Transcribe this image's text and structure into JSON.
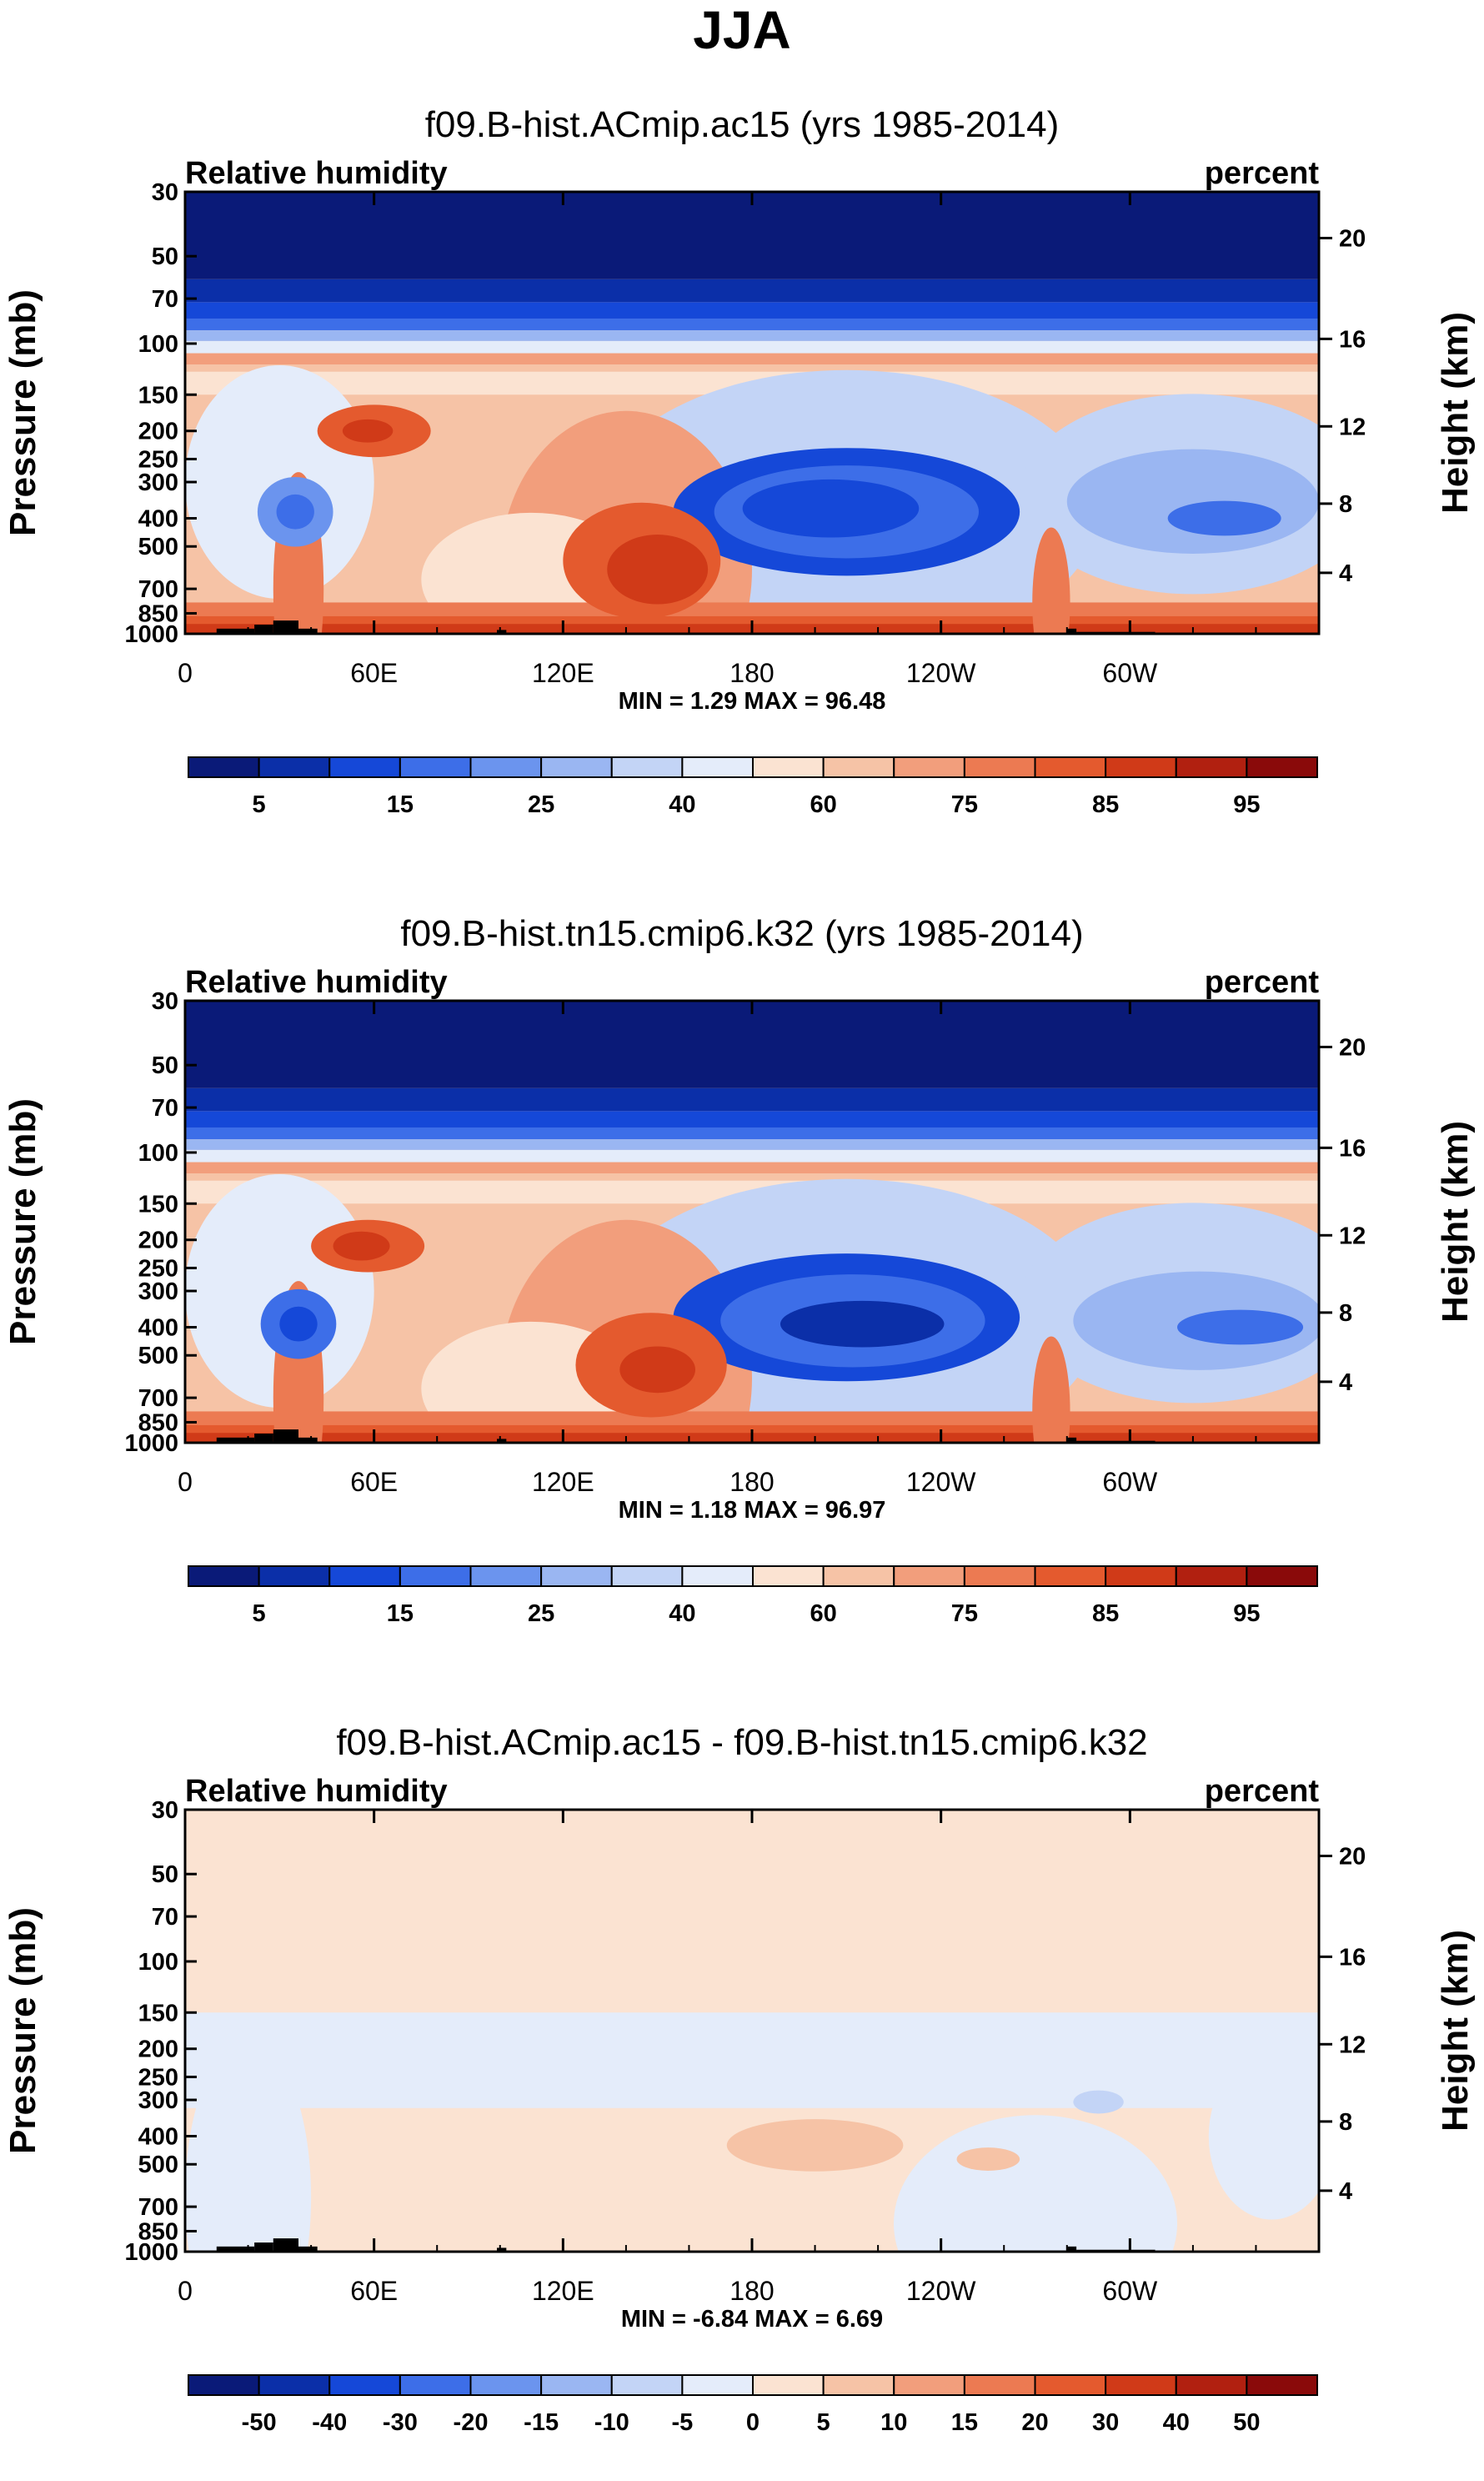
{
  "figure": {
    "season": "JJA",
    "left_axis_label": "Pressure (mb)",
    "right_axis_label": "Height (km)",
    "land_color": "#000000"
  },
  "chart_data": [
    {
      "type": "heatmap",
      "title": "f09.B-hist.ACmip.ac15 (yrs 1985-2014)",
      "variable": "Relative humidity",
      "units": "percent",
      "x_ticks": [
        "0",
        "60E",
        "120E",
        "180",
        "120W",
        "60W"
      ],
      "x_tick_lon": [
        0,
        60,
        120,
        180,
        240,
        300
      ],
      "xlim": [
        0,
        360
      ],
      "p_ticks": [
        "30",
        "50",
        "70",
        "100",
        "150",
        "200",
        "250",
        "300",
        "400",
        "500",
        "700",
        "850",
        "1000"
      ],
      "p_tick_values": [
        30,
        50,
        70,
        100,
        150,
        200,
        250,
        300,
        400,
        500,
        700,
        850,
        1000
      ],
      "ylim_mb": [
        1000,
        30
      ],
      "z_ticks": [
        "20",
        "16",
        "12",
        "8",
        "4"
      ],
      "z_tick_values": [
        20,
        16,
        12,
        8,
        4
      ],
      "stats": "MIN =   1.29   MAX =  96.48",
      "levels_labels": [
        "5",
        "15",
        "25",
        "40",
        "60",
        "75",
        "85",
        "95"
      ],
      "colors": [
        "#0a1a78",
        "#0b2fa8",
        "#1548d8",
        "#3d6ee8",
        "#6b94ee",
        "#9ab6f2",
        "#c3d4f6",
        "#e4ecfa",
        "#fbe3d2",
        "#f6c3a6",
        "#f29e7c",
        "#ec7a52",
        "#e45a2e",
        "#d03a18",
        "#b12010",
        "#8a0a0a"
      ],
      "blobs": [
        {
          "lon": 210,
          "p": 380,
          "rx": 55,
          "rdec": 0.22,
          "c": 2
        },
        {
          "lon": 210,
          "p": 380,
          "rx": 42,
          "rdec": 0.16,
          "c": 3
        },
        {
          "lon": 205,
          "p": 370,
          "rx": 28,
          "rdec": 0.1,
          "c": 2
        },
        {
          "lon": 320,
          "p": 350,
          "rx": 40,
          "rdec": 0.18,
          "c": 5
        },
        {
          "lon": 330,
          "p": 400,
          "rx": 18,
          "rdec": 0.06,
          "c": 3
        },
        {
          "lon": 35,
          "p": 380,
          "rx": 12,
          "rdec": 0.12,
          "c": 4
        },
        {
          "lon": 35,
          "p": 380,
          "rx": 6,
          "rdec": 0.06,
          "c": 3
        },
        {
          "lon": 60,
          "p": 200,
          "rx": 18,
          "rdec": 0.09,
          "c": 12
        },
        {
          "lon": 58,
          "p": 200,
          "rx": 8,
          "rdec": 0.04,
          "c": 13
        },
        {
          "lon": 145,
          "p": 560,
          "rx": 25,
          "rdec": 0.2,
          "c": 12
        },
        {
          "lon": 150,
          "p": 600,
          "rx": 16,
          "rdec": 0.12,
          "c": 13
        }
      ],
      "land_blocks": [
        {
          "lon0": 10,
          "lon1": 22,
          "p0": 960
        },
        {
          "lon0": 22,
          "lon1": 28,
          "p0": 930
        },
        {
          "lon0": 28,
          "lon1": 36,
          "p0": 900
        },
        {
          "lon0": 36,
          "lon1": 42,
          "p0": 960
        },
        {
          "lon0": 99,
          "lon1": 102,
          "p0": 970
        },
        {
          "lon0": 280,
          "lon1": 283,
          "p0": 960
        },
        {
          "lon0": 283,
          "lon1": 308,
          "p0": 985
        }
      ]
    },
    {
      "type": "heatmap",
      "title": "f09.B-hist.tn15.cmip6.k32 (yrs 1985-2014)",
      "variable": "Relative humidity",
      "units": "percent",
      "x_ticks": [
        "0",
        "60E",
        "120E",
        "180",
        "120W",
        "60W"
      ],
      "x_tick_lon": [
        0,
        60,
        120,
        180,
        240,
        300
      ],
      "xlim": [
        0,
        360
      ],
      "p_ticks": [
        "30",
        "50",
        "70",
        "100",
        "150",
        "200",
        "250",
        "300",
        "400",
        "500",
        "700",
        "850",
        "1000"
      ],
      "p_tick_values": [
        30,
        50,
        70,
        100,
        150,
        200,
        250,
        300,
        400,
        500,
        700,
        850,
        1000
      ],
      "ylim_mb": [
        1000,
        30
      ],
      "z_ticks": [
        "20",
        "16",
        "12",
        "8",
        "4"
      ],
      "z_tick_values": [
        20,
        16,
        12,
        8,
        4
      ],
      "stats": "MIN =   1.18   MAX =  96.97",
      "levels_labels": [
        "5",
        "15",
        "25",
        "40",
        "60",
        "75",
        "85",
        "95"
      ],
      "colors": [
        "#0a1a78",
        "#0b2fa8",
        "#1548d8",
        "#3d6ee8",
        "#6b94ee",
        "#9ab6f2",
        "#c3d4f6",
        "#e4ecfa",
        "#fbe3d2",
        "#f6c3a6",
        "#f29e7c",
        "#ec7a52",
        "#e45a2e",
        "#d03a18",
        "#b12010",
        "#8a0a0a"
      ],
      "blobs": [
        {
          "lon": 210,
          "p": 370,
          "rx": 55,
          "rdec": 0.22,
          "c": 2
        },
        {
          "lon": 212,
          "p": 380,
          "rx": 42,
          "rdec": 0.16,
          "c": 3
        },
        {
          "lon": 215,
          "p": 390,
          "rx": 26,
          "rdec": 0.08,
          "c": 1
        },
        {
          "lon": 322,
          "p": 380,
          "rx": 40,
          "rdec": 0.17,
          "c": 5
        },
        {
          "lon": 335,
          "p": 400,
          "rx": 20,
          "rdec": 0.06,
          "c": 3
        },
        {
          "lon": 36,
          "p": 390,
          "rx": 12,
          "rdec": 0.12,
          "c": 3
        },
        {
          "lon": 36,
          "p": 390,
          "rx": 6,
          "rdec": 0.06,
          "c": 2
        },
        {
          "lon": 58,
          "p": 210,
          "rx": 18,
          "rdec": 0.09,
          "c": 12
        },
        {
          "lon": 56,
          "p": 210,
          "rx": 9,
          "rdec": 0.05,
          "c": 13
        },
        {
          "lon": 148,
          "p": 540,
          "rx": 24,
          "rdec": 0.18,
          "c": 12
        },
        {
          "lon": 150,
          "p": 560,
          "rx": 12,
          "rdec": 0.08,
          "c": 13
        }
      ],
      "land_blocks": [
        {
          "lon0": 10,
          "lon1": 22,
          "p0": 960
        },
        {
          "lon0": 22,
          "lon1": 28,
          "p0": 930
        },
        {
          "lon0": 28,
          "lon1": 36,
          "p0": 900
        },
        {
          "lon0": 36,
          "lon1": 42,
          "p0": 960
        },
        {
          "lon0": 99,
          "lon1": 102,
          "p0": 970
        },
        {
          "lon0": 280,
          "lon1": 283,
          "p0": 960
        },
        {
          "lon0": 283,
          "lon1": 308,
          "p0": 985
        }
      ]
    },
    {
      "type": "heatmap",
      "title": "f09.B-hist.ACmip.ac15 - f09.B-hist.tn15.cmip6.k32",
      "variable": "Relative humidity",
      "units": "percent",
      "x_ticks": [
        "0",
        "60E",
        "120E",
        "180",
        "120W",
        "60W"
      ],
      "x_tick_lon": [
        0,
        60,
        120,
        180,
        240,
        300
      ],
      "xlim": [
        0,
        360
      ],
      "p_ticks": [
        "30",
        "50",
        "70",
        "100",
        "150",
        "200",
        "250",
        "300",
        "400",
        "500",
        "700",
        "850",
        "1000"
      ],
      "p_tick_values": [
        30,
        50,
        70,
        100,
        150,
        200,
        250,
        300,
        400,
        500,
        700,
        850,
        1000
      ],
      "ylim_mb": [
        1000,
        30
      ],
      "z_ticks": [
        "20",
        "16",
        "12",
        "8",
        "4"
      ],
      "z_tick_values": [
        20,
        16,
        12,
        8,
        4
      ],
      "stats": "MIN =  -6.84   MAX =   6.69",
      "levels_labels": [
        "-50",
        "-40",
        "-30",
        "-20",
        "-15",
        "-10",
        "-5",
        "0",
        "5",
        "10",
        "15",
        "20",
        "30",
        "40",
        "50"
      ],
      "colors": [
        "#0a1a78",
        "#0b2fa8",
        "#1548d8",
        "#3d6ee8",
        "#6b94ee",
        "#9ab6f2",
        "#c3d4f6",
        "#e4ecfa",
        "#fbe3d2",
        "#f6c3a6",
        "#f29e7c",
        "#ec7a52",
        "#e45a2e",
        "#d03a18",
        "#b12010",
        "#8a0a0a"
      ],
      "blobs": [
        {
          "lon": 200,
          "p": 430,
          "rx": 28,
          "rdec": 0.09,
          "c": 9
        },
        {
          "lon": 255,
          "p": 480,
          "rx": 10,
          "rdec": 0.04,
          "c": 9
        },
        {
          "lon": 290,
          "p": 305,
          "rx": 8,
          "rdec": 0.04,
          "c": 6
        },
        {
          "lon": 75,
          "p": 290,
          "rx": 9,
          "rdec": 0.04,
          "c": 7
        },
        {
          "lon": 140,
          "p": 260,
          "rx": 12,
          "rdec": 0.05,
          "c": 7
        }
      ],
      "land_blocks": [
        {
          "lon0": 10,
          "lon1": 22,
          "p0": 960
        },
        {
          "lon0": 22,
          "lon1": 28,
          "p0": 930
        },
        {
          "lon0": 28,
          "lon1": 36,
          "p0": 900
        },
        {
          "lon0": 36,
          "lon1": 42,
          "p0": 960
        },
        {
          "lon0": 99,
          "lon1": 102,
          "p0": 970
        },
        {
          "lon0": 280,
          "lon1": 283,
          "p0": 960
        },
        {
          "lon0": 283,
          "lon1": 308,
          "p0": 985
        }
      ]
    }
  ]
}
